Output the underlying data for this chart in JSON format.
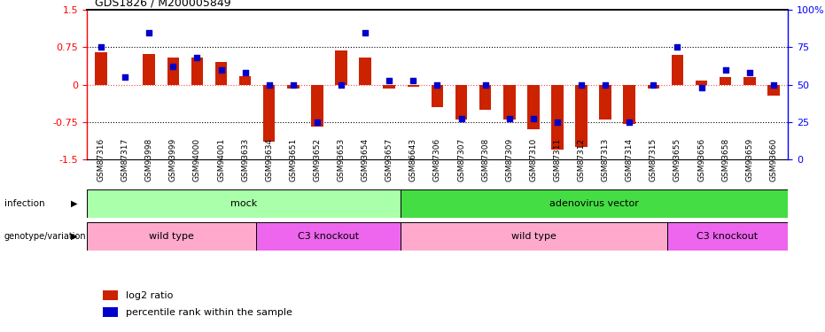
{
  "title": "GDS1826 / M200005849",
  "samples": [
    "GSM87316",
    "GSM87317",
    "GSM93998",
    "GSM93999",
    "GSM94000",
    "GSM94001",
    "GSM93633",
    "GSM93634",
    "GSM93651",
    "GSM93652",
    "GSM93653",
    "GSM93654",
    "GSM93657",
    "GSM86643",
    "GSM87306",
    "GSM87307",
    "GSM87308",
    "GSM87309",
    "GSM87310",
    "GSM87311",
    "GSM87312",
    "GSM87313",
    "GSM87314",
    "GSM87315",
    "GSM93655",
    "GSM93656",
    "GSM93658",
    "GSM93659",
    "GSM93660"
  ],
  "log2_ratio": [
    0.65,
    0.0,
    0.62,
    0.55,
    0.55,
    0.45,
    0.18,
    -1.15,
    -0.08,
    -0.85,
    0.68,
    0.55,
    -0.08,
    -0.05,
    -0.45,
    -0.7,
    -0.5,
    -0.7,
    -0.9,
    -1.3,
    -1.25,
    -0.7,
    -0.78,
    -0.08,
    0.6,
    0.08,
    0.15,
    0.15,
    -0.22
  ],
  "percentile_rank": [
    75,
    55,
    85,
    62,
    68,
    60,
    58,
    50,
    50,
    25,
    50,
    85,
    53,
    53,
    50,
    27,
    50,
    27,
    27,
    25,
    50,
    50,
    25,
    50,
    75,
    48,
    60,
    58,
    50
  ],
  "infection_groups": [
    {
      "label": "mock",
      "start": 0,
      "end": 13,
      "color": "#aaffaa"
    },
    {
      "label": "adenovirus vector",
      "start": 13,
      "end": 29,
      "color": "#44dd44"
    }
  ],
  "genotype_groups": [
    {
      "label": "wild type",
      "start": 0,
      "end": 7,
      "color": "#ffaacc"
    },
    {
      "label": "C3 knockout",
      "start": 7,
      "end": 13,
      "color": "#ee66ee"
    },
    {
      "label": "wild type",
      "start": 13,
      "end": 24,
      "color": "#ffaacc"
    },
    {
      "label": "C3 knockout",
      "start": 24,
      "end": 29,
      "color": "#ee66ee"
    }
  ],
  "ylim": [
    -1.5,
    1.5
  ],
  "bar_color": "#CC2200",
  "dot_color": "#0000CC",
  "background_color": "#ffffff",
  "dotted_line_y": [
    0.75,
    -0.75
  ],
  "zero_line_color": "#FF4444",
  "bar_width": 0.5
}
